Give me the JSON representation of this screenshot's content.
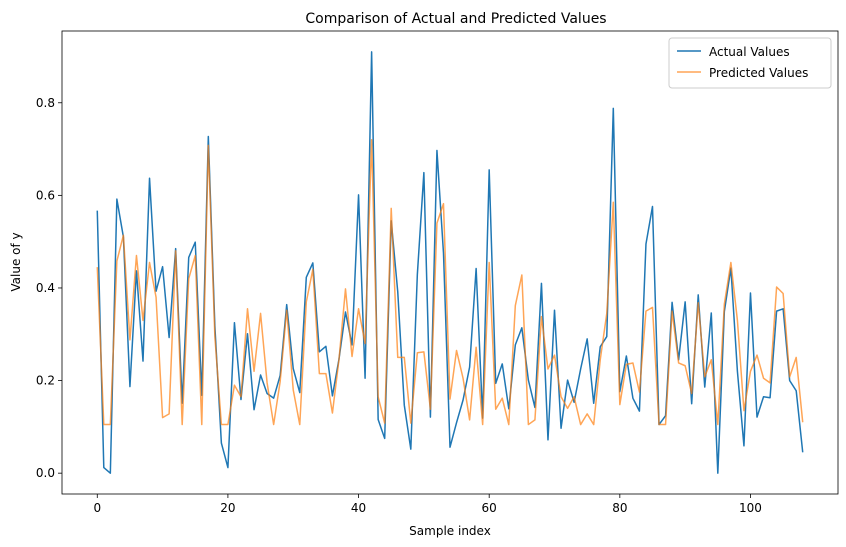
{
  "chart_data": {
    "type": "line",
    "title": "Comparison of Actual and Predicted Values",
    "xlabel": "Sample index",
    "ylabel": "Value of y",
    "xlim": [
      -5.4,
      113.4
    ],
    "ylim": [
      -0.045,
      0.955
    ],
    "xticks": [
      0,
      20,
      40,
      60,
      80,
      100
    ],
    "yticks": [
      0.0,
      0.2,
      0.4,
      0.6,
      0.8
    ],
    "ytick_labels": [
      "0.0",
      "0.2",
      "0.4",
      "0.6",
      "0.8"
    ],
    "grid": false,
    "legend_position": "top-right",
    "series": [
      {
        "name": "Actual Values",
        "color": "#1f77b4",
        "opacity": 1,
        "values": [
          0.567,
          0.012,
          0.0,
          0.592,
          0.51,
          0.187,
          0.437,
          0.242,
          0.637,
          0.393,
          0.446,
          0.293,
          0.485,
          0.151,
          0.466,
          0.499,
          0.168,
          0.727,
          0.318,
          0.065,
          0.012,
          0.325,
          0.159,
          0.301,
          0.137,
          0.212,
          0.172,
          0.162,
          0.211,
          0.364,
          0.226,
          0.174,
          0.423,
          0.454,
          0.262,
          0.274,
          0.167,
          0.246,
          0.348,
          0.277,
          0.601,
          0.205,
          0.91,
          0.116,
          0.075,
          0.545,
          0.392,
          0.147,
          0.052,
          0.429,
          0.649,
          0.121,
          0.697,
          0.476,
          0.056,
          0.109,
          0.158,
          0.229,
          0.442,
          0.119,
          0.655,
          0.194,
          0.236,
          0.139,
          0.277,
          0.314,
          0.201,
          0.142,
          0.41,
          0.072,
          0.352,
          0.097,
          0.201,
          0.153,
          0.225,
          0.29,
          0.151,
          0.273,
          0.295,
          0.788,
          0.176,
          0.253,
          0.162,
          0.134,
          0.495,
          0.576,
          0.105,
          0.124,
          0.369,
          0.245,
          0.37,
          0.15,
          0.385,
          0.186,
          0.346,
          0.0,
          0.349,
          0.443,
          0.22,
          0.059,
          0.389,
          0.121,
          0.165,
          0.163,
          0.35,
          0.355,
          0.2,
          0.178,
          0.045
        ]
      },
      {
        "name": "Predicted Values",
        "color": "#ff7f0e",
        "opacity": 0.7,
        "values": [
          0.445,
          0.105,
          0.105,
          0.458,
          0.514,
          0.288,
          0.47,
          0.33,
          0.455,
          0.38,
          0.12,
          0.128,
          0.48,
          0.105,
          0.42,
          0.47,
          0.105,
          0.708,
          0.295,
          0.105,
          0.105,
          0.19,
          0.165,
          0.355,
          0.22,
          0.345,
          0.195,
          0.105,
          0.198,
          0.352,
          0.18,
          0.105,
          0.37,
          0.44,
          0.215,
          0.215,
          0.13,
          0.245,
          0.398,
          0.252,
          0.355,
          0.28,
          0.72,
          0.165,
          0.108,
          0.572,
          0.25,
          0.25,
          0.108,
          0.26,
          0.262,
          0.138,
          0.54,
          0.582,
          0.16,
          0.265,
          0.205,
          0.115,
          0.272,
          0.105,
          0.455,
          0.138,
          0.162,
          0.105,
          0.362,
          0.428,
          0.105,
          0.115,
          0.338,
          0.225,
          0.255,
          0.165,
          0.14,
          0.165,
          0.105,
          0.128,
          0.105,
          0.245,
          0.345,
          0.585,
          0.148,
          0.235,
          0.238,
          0.175,
          0.35,
          0.358,
          0.105,
          0.105,
          0.35,
          0.238,
          0.232,
          0.172,
          0.368,
          0.208,
          0.245,
          0.105,
          0.365,
          0.455,
          0.33,
          0.135,
          0.22,
          0.255,
          0.205,
          0.195,
          0.402,
          0.388,
          0.208,
          0.25,
          0.11
        ]
      }
    ]
  }
}
